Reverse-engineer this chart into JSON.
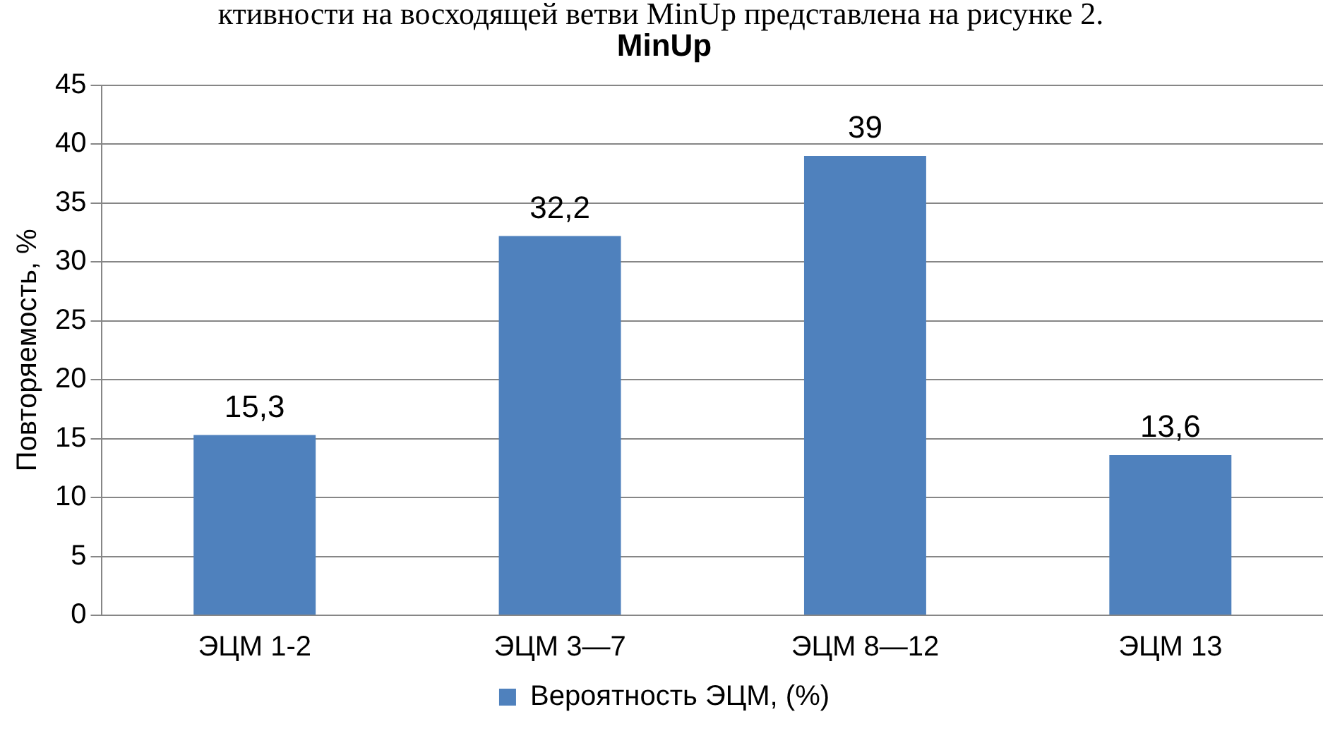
{
  "chart_data": {
    "type": "bar",
    "title": "MinUp",
    "annotations": [
      "ктивности на восходящей ветви MinUp представлена на рисунке 2."
    ],
    "ylabel": "Повторяемость, %",
    "categories": [
      "ЭЦМ 1-2",
      "ЭЦМ 3—7",
      "ЭЦМ 8—12",
      "ЭЦМ 13"
    ],
    "series": [
      {
        "name": "Вероятность ЭЦМ, (%)",
        "color": "#4f81bd",
        "values": [
          15.3,
          32.2,
          39,
          13.6
        ],
        "value_labels": [
          "15,3",
          "32,2",
          "39",
          "13,6"
        ]
      }
    ],
    "ylim": [
      0,
      45
    ],
    "yticks": [
      0,
      5,
      10,
      15,
      20,
      25,
      30,
      35,
      40,
      45
    ],
    "grid": "y",
    "legend": "bottom"
  }
}
